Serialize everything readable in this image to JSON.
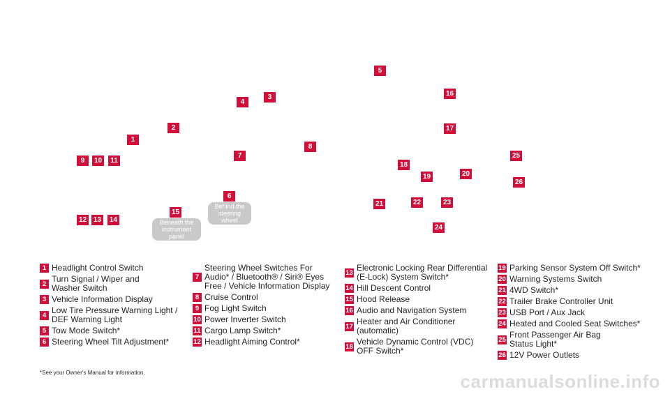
{
  "markers": [
    {
      "id": "5",
      "label": "5"
    },
    {
      "id": "16",
      "label": "16"
    },
    {
      "id": "3",
      "label": "3"
    },
    {
      "id": "4",
      "label": "4"
    },
    {
      "id": "17",
      "label": "17"
    },
    {
      "id": "2",
      "label": "2"
    },
    {
      "id": "1",
      "label": "1"
    },
    {
      "id": "8",
      "label": "8"
    },
    {
      "id": "7",
      "label": "7"
    },
    {
      "id": "25",
      "label": "25"
    },
    {
      "id": "9",
      "label": "9"
    },
    {
      "id": "10",
      "label": "10"
    },
    {
      "id": "11",
      "label": "11"
    },
    {
      "id": "18",
      "label": "18"
    },
    {
      "id": "19",
      "label": "19"
    },
    {
      "id": "20",
      "label": "20"
    },
    {
      "id": "26",
      "label": "26"
    },
    {
      "id": "6",
      "label": "6"
    },
    {
      "id": "21",
      "label": "21"
    },
    {
      "id": "22",
      "label": "22"
    },
    {
      "id": "23",
      "label": "23"
    },
    {
      "id": "15",
      "label": "15"
    },
    {
      "id": "12",
      "label": "12"
    },
    {
      "id": "13",
      "label": "13"
    },
    {
      "id": "14",
      "label": "14"
    },
    {
      "id": "24",
      "label": "24"
    }
  ],
  "notes": {
    "steering": "Behind the\nsteering wheel",
    "instrument": "Beneath the\ninstrument panel"
  },
  "legend": {
    "col1": [
      {
        "num": "1",
        "text": "Headlight Control Switch"
      },
      {
        "num": "2",
        "text": "Turn Signal / Wiper and\nWasher Switch"
      },
      {
        "num": "3",
        "text": "Vehicle Information Display"
      },
      {
        "num": "4",
        "text": "Low Tire Pressure Warning Light /\nDEF Warning Light"
      },
      {
        "num": "5",
        "text": "Tow Mode Switch*"
      },
      {
        "num": "6",
        "text": "Steering Wheel Tilt Adjustment*"
      }
    ],
    "col2": [
      {
        "num": "7",
        "text": "Steering Wheel Switches For\nAudio* / Bluetooth® / Siri® Eyes\nFree / Vehicle Information Display"
      },
      {
        "num": "8",
        "text": "Cruise Control"
      },
      {
        "num": "9",
        "text": "Fog Light Switch"
      },
      {
        "num": "10",
        "text": "Power Inverter Switch"
      },
      {
        "num": "11",
        "text": "Cargo Lamp Switch*"
      },
      {
        "num": "12",
        "text": "Headlight Aiming Control*"
      }
    ],
    "col3": [
      {
        "num": "13",
        "text": "Electronic Locking Rear Differential\n(E-Lock) System Switch*"
      },
      {
        "num": "14",
        "text": "Hill Descent Control"
      },
      {
        "num": "15",
        "text": "Hood Release"
      },
      {
        "num": "16",
        "text": "Audio and Navigation System"
      },
      {
        "num": "17",
        "text": "Heater and Air Conditioner\n(automatic)"
      },
      {
        "num": "18",
        "text": "Vehicle Dynamic Control (VDC)\nOFF Switch*"
      }
    ],
    "col4": [
      {
        "num": "19",
        "text": "Parking Sensor System Off Switch*"
      },
      {
        "num": "20",
        "text": "Warning Systems Switch"
      },
      {
        "num": "21",
        "text": "4WD Switch*"
      },
      {
        "num": "22",
        "text": "Trailer Brake Controller Unit"
      },
      {
        "num": "23",
        "text": "USB Port / Aux Jack"
      },
      {
        "num": "24",
        "text": "Heated and Cooled Seat Switches*"
      },
      {
        "num": "25",
        "text": "Front Passenger Air Bag\nStatus Light*"
      },
      {
        "num": "26",
        "text": "12V Power Outlets"
      }
    ]
  },
  "footnote": "*See your Owner's Manual for information.",
  "watermark": "carmanualsonline.info"
}
